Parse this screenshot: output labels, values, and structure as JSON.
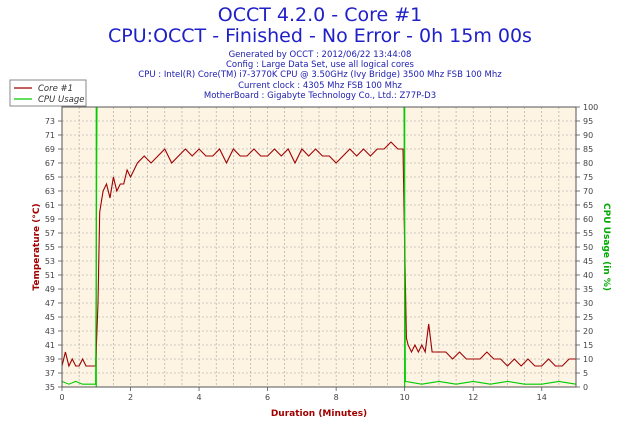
{
  "header": {
    "title": "OCCT 4.2.0 - Core #1",
    "subtitle": "CPU:OCCT - Finished - No Error - 0h 15m 00s",
    "info_lines": [
      "Generated by OCCT : 2012/06/22 13:44:08",
      "Config : Large Data Set, use all logical cores",
      "CPU : Intel(R) Core(TM) i7-3770K CPU @ 3.50GHz (Ivy Bridge) 3500 Mhz FSB 100 Mhz",
      "Current clock : 4305 Mhz FSB 100 Mhz",
      "MotherBoard : Gigabyte Technology Co., Ltd.: Z77P-D3"
    ]
  },
  "legend": {
    "items": [
      {
        "label": "Core #1",
        "color": "#a00000"
      },
      {
        "label": "CPU Usage",
        "color": "#00cc00"
      }
    ]
  },
  "colors": {
    "plot_background": "#fdf4e4",
    "grid": "#a0a0a0",
    "temperature": "#a00000",
    "cpu_usage": "#00cc00",
    "marker_line": "#00cc00"
  },
  "chart_data": {
    "type": "line",
    "xlabel": "Duration (Minutes)",
    "ylabel": "Temperature (°C)",
    "y2label": "CPU Usage (in %)",
    "xlim": [
      0,
      15
    ],
    "ylim": [
      35,
      75
    ],
    "y2lim": [
      0,
      100
    ],
    "x_ticks": [
      0,
      2,
      4,
      6,
      8,
      10,
      12,
      14
    ],
    "y_ticks": [
      35,
      37,
      39,
      41,
      43,
      45,
      47,
      49,
      51,
      53,
      55,
      57,
      59,
      61,
      63,
      65,
      67,
      69,
      71,
      73
    ],
    "y2_ticks": [
      0,
      5,
      10,
      15,
      20,
      25,
      30,
      35,
      40,
      45,
      50,
      55,
      60,
      65,
      70,
      75,
      80,
      85,
      90,
      95,
      100
    ],
    "grid": true,
    "legend_position": "top-left",
    "markers_x": [
      1.0,
      10.0
    ],
    "series": [
      {
        "name": "Core #1",
        "axis": "left",
        "x": [
          0,
          0.1,
          0.2,
          0.3,
          0.4,
          0.5,
          0.6,
          0.7,
          0.8,
          0.9,
          0.98,
          1.05,
          1.1,
          1.2,
          1.3,
          1.4,
          1.5,
          1.6,
          1.7,
          1.8,
          1.9,
          2.0,
          2.1,
          2.2,
          2.4,
          2.6,
          2.8,
          3.0,
          3.2,
          3.4,
          3.6,
          3.8,
          4.0,
          4.2,
          4.4,
          4.6,
          4.8,
          5.0,
          5.2,
          5.4,
          5.6,
          5.8,
          6.0,
          6.2,
          6.4,
          6.6,
          6.8,
          7.0,
          7.2,
          7.4,
          7.6,
          7.8,
          8.0,
          8.2,
          8.4,
          8.6,
          8.8,
          9.0,
          9.2,
          9.4,
          9.6,
          9.8,
          9.95,
          10.0,
          10.05,
          10.1,
          10.2,
          10.3,
          10.4,
          10.5,
          10.6,
          10.7,
          10.8,
          10.9,
          11.0,
          11.2,
          11.4,
          11.6,
          11.8,
          12.0,
          12.2,
          12.4,
          12.6,
          12.8,
          13.0,
          13.2,
          13.4,
          13.6,
          13.8,
          14.0,
          14.2,
          14.4,
          14.6,
          14.8,
          15.0
        ],
        "y": [
          38,
          40,
          38,
          39,
          38,
          38,
          39,
          38,
          38,
          38,
          38,
          47,
          60,
          63,
          64,
          62,
          65,
          63,
          64,
          64,
          66,
          65,
          66,
          67,
          68,
          67,
          68,
          69,
          67,
          68,
          69,
          68,
          69,
          68,
          68,
          69,
          67,
          69,
          68,
          68,
          69,
          68,
          68,
          69,
          68,
          69,
          67,
          69,
          68,
          69,
          68,
          68,
          67,
          68,
          69,
          68,
          69,
          68,
          69,
          69,
          70,
          69,
          69,
          55,
          42,
          41,
          40,
          41,
          40,
          41,
          40,
          44,
          40,
          40,
          40,
          40,
          39,
          40,
          39,
          39,
          39,
          40,
          39,
          39,
          38,
          39,
          38,
          39,
          38,
          38,
          39,
          38,
          38,
          39,
          39
        ]
      },
      {
        "name": "CPU Usage",
        "axis": "right",
        "x": [
          0,
          0.2,
          0.4,
          0.6,
          0.8,
          0.98,
          1.0,
          1.02,
          2,
          3,
          4,
          5,
          6,
          7,
          8,
          9,
          9.98,
          10.0,
          10.02,
          10.5,
          11,
          11.5,
          12,
          12.5,
          13,
          13.5,
          14,
          14.5,
          15
        ],
        "y": [
          2,
          1,
          2,
          1,
          1,
          1,
          50,
          100,
          100,
          100,
          100,
          100,
          100,
          100,
          100,
          100,
          100,
          50,
          2,
          1,
          2,
          1,
          2,
          1,
          2,
          1,
          1,
          2,
          1
        ]
      }
    ]
  }
}
